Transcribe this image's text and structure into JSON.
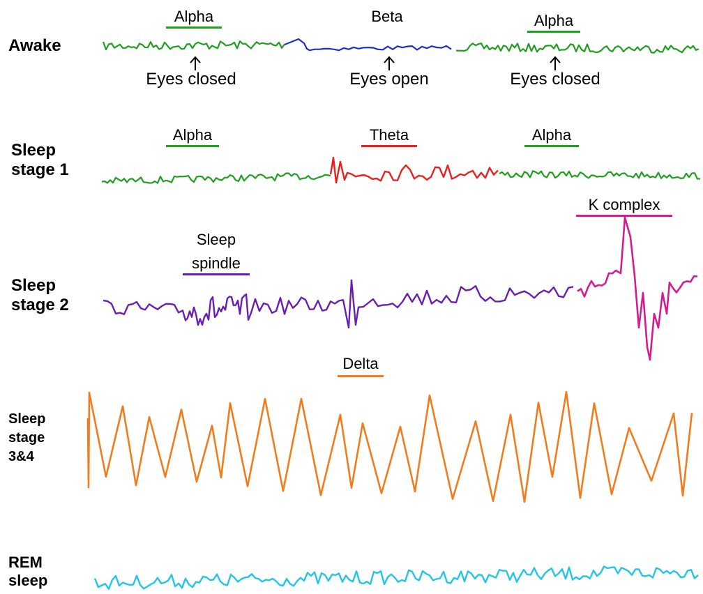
{
  "colors": {
    "alpha": "#1f9e1f",
    "beta": "#1f2ec8",
    "theta": "#e8201e",
    "spindle": "#6a1fb0",
    "k_complex": "#d01e8e",
    "delta": "#f07c1e",
    "rem": "#22c4e8"
  },
  "rows": {
    "awake": {
      "label": "Awake"
    },
    "stage1": {
      "label_line1": "Sleep",
      "label_line2": "stage 1"
    },
    "stage2": {
      "label_line1": "Sleep",
      "label_line2": "stage 2"
    },
    "stage34": {
      "label_line1": "Sleep",
      "label_line2": "stage",
      "label_line3": "3&4"
    },
    "rem": {
      "label_line1": "REM",
      "label_line2": "sleep"
    }
  },
  "wave_labels": {
    "awake_alpha_1": "Alpha",
    "awake_beta": "Beta",
    "awake_alpha_2": "Alpha",
    "stage1_alpha_1": "Alpha",
    "stage1_theta": "Theta",
    "stage1_alpha_2": "Alpha",
    "spindle_line1": "Sleep",
    "spindle_line2": "spindle",
    "k_complex": "K complex",
    "delta": "Delta"
  },
  "annotations": {
    "eyes_closed_1": "Eyes closed",
    "eyes_open": "Eyes open",
    "eyes_closed_2": "Eyes closed"
  }
}
